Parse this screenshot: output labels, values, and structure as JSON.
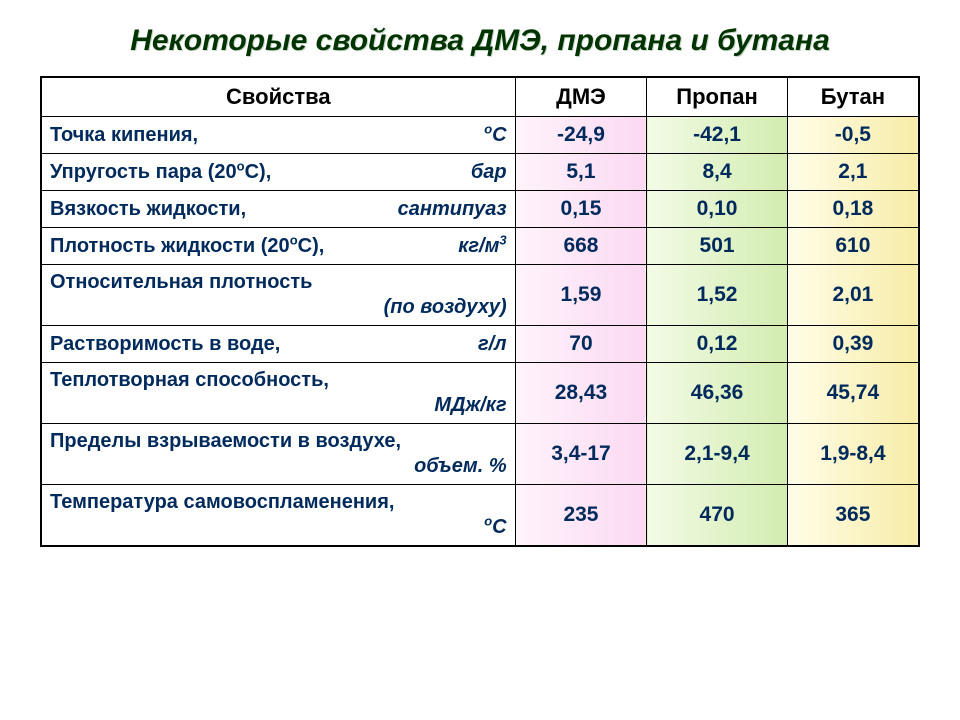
{
  "title": "Некоторые свойства ДМЭ, пропана и бутана",
  "columns": {
    "prop": "Свойства",
    "dme": "ДМЭ",
    "propane": "Пропан",
    "butane": "Бутан"
  },
  "colors": {
    "title_color": "#003300",
    "text_color": "#002a5c",
    "border_color": "#000000",
    "dme_grad_start": "#fff3fb",
    "dme_grad_end": "#fbd9f2",
    "propane_grad_start": "#f3fbe6",
    "propane_grad_end": "#d2ecb0",
    "butane_grad_start": "#fffde8",
    "butane_grad_end": "#f7eca8"
  },
  "fonts": {
    "title_pt": 30,
    "header_pt": 22,
    "cell_pt": 21,
    "prop_pt": 20,
    "family": "Arial"
  },
  "rows": [
    {
      "name": "Точка кипения,",
      "unit_html": "<sup>o</sup>С",
      "second_line": "",
      "dme": "-24,9",
      "propane": "-42,1",
      "butane": "-0,5"
    },
    {
      "name": "Упругость пара (20<sup>o</sup>С),",
      "unit_html": "бар",
      "second_line": "",
      "dme": "5,1",
      "propane": "8,4",
      "butane": "2,1"
    },
    {
      "name": "Вязкость жидкости,",
      "unit_html": "сантипуаз",
      "second_line": "",
      "dme": "0,15",
      "propane": "0,10",
      "butane": "0,18"
    },
    {
      "name": "Плотность жидкости (20<sup>o</sup>С),",
      "unit_html": "кг/м<sup>3</sup>",
      "second_line": "",
      "dme": "668",
      "propane": "501",
      "butane": "610"
    },
    {
      "name": "Относительная плотность",
      "unit_html": "",
      "second_line": "(по воздуху)",
      "dme": "1,59",
      "propane": "1,52",
      "butane": "2,01"
    },
    {
      "name": "Растворимость в воде,",
      "unit_html": "г/л",
      "second_line": "",
      "dme": "70",
      "propane": "0,12",
      "butane": "0,39"
    },
    {
      "name": "Теплотворная способность,",
      "unit_html": "",
      "second_line": "МДж/кг",
      "dme": "28,43",
      "propane": "46,36",
      "butane": "45,74"
    },
    {
      "name": "Пределы взрываемости в воздухе,",
      "unit_html": "",
      "second_line": "объем. %",
      "dme": "3,4-17",
      "propane": "2,1-9,4",
      "butane": "1,9-8,4"
    },
    {
      "name": "Температура самовоспламенения,",
      "unit_html": "",
      "second_line": "<sup>o</sup>С",
      "dme": "235",
      "propane": "470",
      "butane": "365"
    }
  ]
}
